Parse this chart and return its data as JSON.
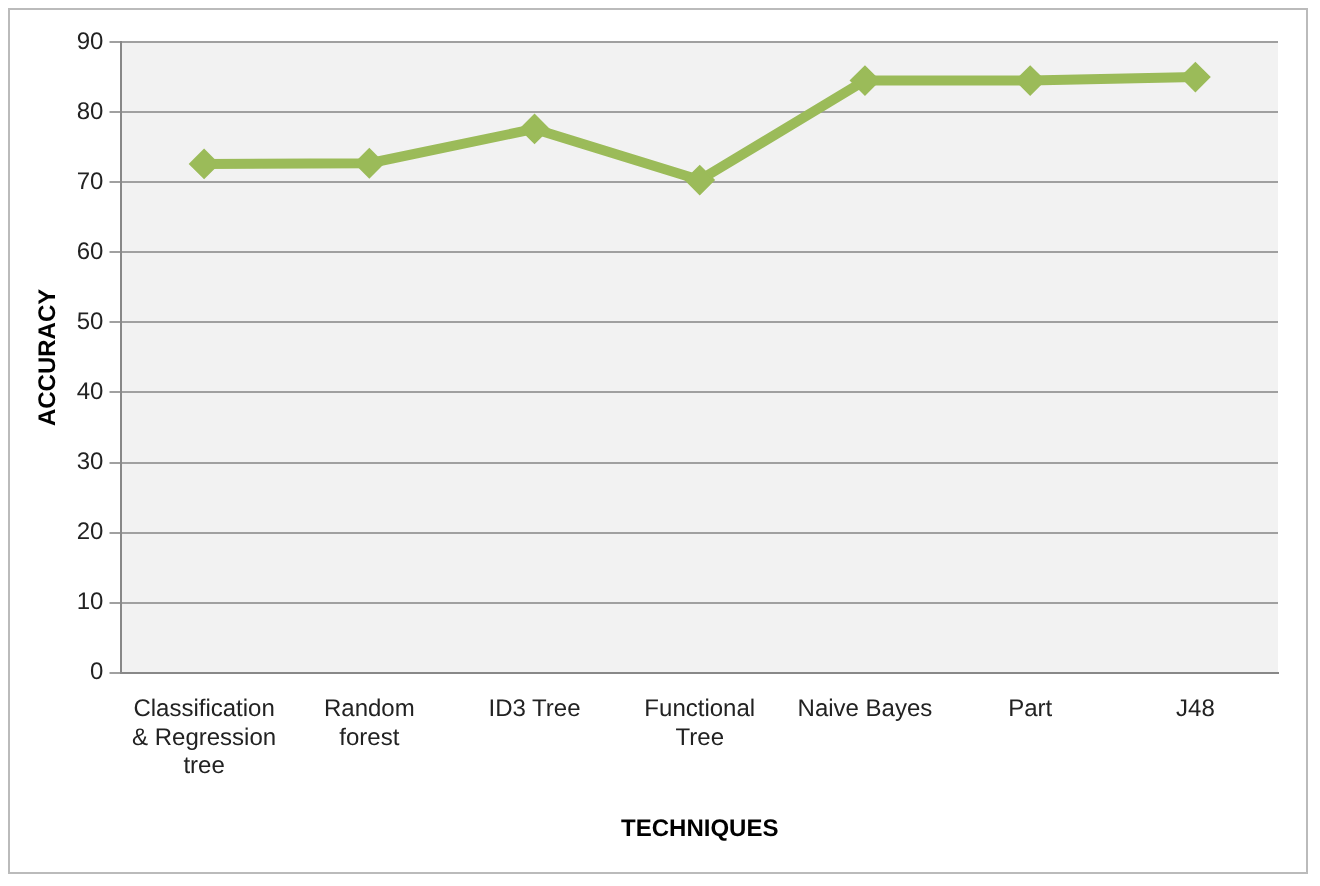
{
  "chart_data": {
    "type": "line",
    "xlabel": "TECHNIQUES",
    "ylabel": "ACCURACY",
    "categories": [
      "Classification & Regression tree",
      "Random forest",
      "ID3 Tree",
      "Functional Tree",
      "Naive Bayes",
      "Part",
      "J48"
    ],
    "series": [
      {
        "color": "#9bbb59",
        "values": [
          72.6,
          72.7,
          77.6,
          70.3,
          84.5,
          84.5,
          85.0
        ]
      }
    ],
    "ylim": [
      0,
      90
    ],
    "yticks": [
      0,
      10,
      20,
      30,
      40,
      50,
      60,
      70,
      80,
      90
    ],
    "grid": "y",
    "legend": false,
    "marker": "diamond",
    "line_style": "solid"
  }
}
